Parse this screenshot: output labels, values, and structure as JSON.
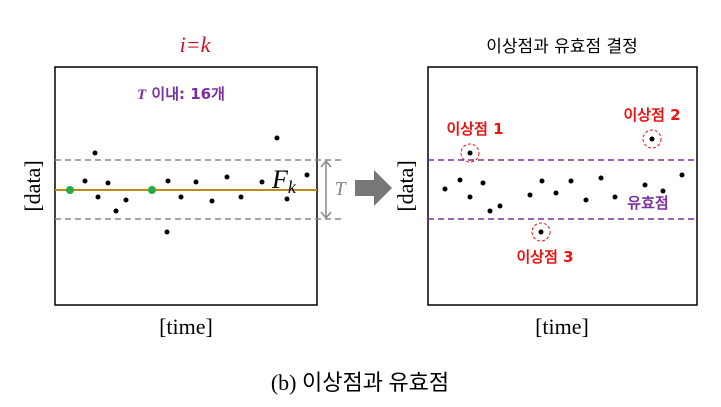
{
  "left_panel": {
    "title": "i=k",
    "count_symbol": "T",
    "count_text": " 이내: 16개",
    "y_label": "[data]",
    "x_label": "[time]",
    "fit_label": "F",
    "fit_subscript": "k",
    "band_label": "T"
  },
  "right_panel": {
    "title": "이상점과 유효점 결정",
    "y_label": "[data]",
    "x_label": "[time]",
    "outliers": [
      "이상점 1",
      "이상점 2",
      "이상점 3"
    ],
    "valid_label": "유효점"
  },
  "caption": "(b) 이상점과 유효점"
}
